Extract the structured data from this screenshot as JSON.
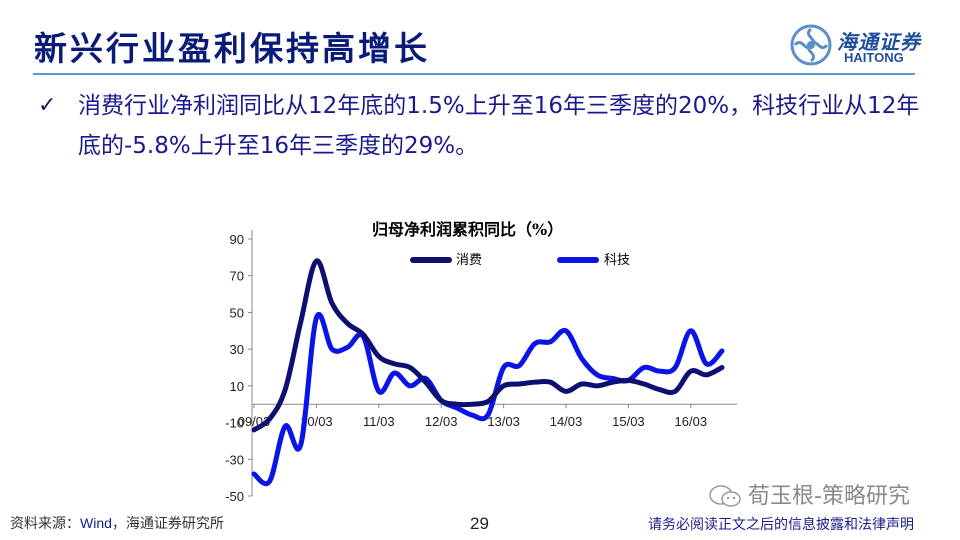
{
  "header": {
    "title": "新兴行业盈利保持高增长",
    "logo": {
      "icon": "haitong-logo-icon",
      "cn": "海通证券",
      "en": "HAITONG"
    }
  },
  "bullet": {
    "icon": "checkmark-icon",
    "text": "消费行业净利润同比从12年底的1.5%上升至16年三季度的20%，科技行业从12年底的-5.8%上升至16年三季度的29%。"
  },
  "chart_data": {
    "type": "line",
    "title": "归母净利润累积同比（%）",
    "xlabel": "",
    "ylabel": "",
    "ylim": [
      -50,
      90
    ],
    "yticks": [
      90,
      70,
      50,
      30,
      10,
      -10,
      -30,
      -50
    ],
    "xtick_labels": [
      "09/03",
      "10/03",
      "11/03",
      "12/03",
      "13/03",
      "14/03",
      "15/03",
      "16/03"
    ],
    "x": [
      "09/03",
      "09/06",
      "09/09",
      "09/12",
      "10/03",
      "10/06",
      "10/09",
      "10/12",
      "11/03",
      "11/06",
      "11/09",
      "11/12",
      "12/03",
      "12/06",
      "12/09",
      "12/12",
      "13/03",
      "13/06",
      "13/09",
      "13/12",
      "14/03",
      "14/06",
      "14/09",
      "14/12",
      "15/03",
      "15/06",
      "15/09",
      "15/12",
      "16/03",
      "16/06",
      "16/09"
    ],
    "series": [
      {
        "name": "消费",
        "color": "#0d1070",
        "values": [
          -14,
          -8,
          8,
          45,
          78,
          55,
          44,
          38,
          26,
          22,
          20,
          12,
          2,
          0,
          0,
          1.5,
          10,
          11,
          12,
          12,
          7,
          11,
          10,
          12,
          13,
          11,
          8,
          7,
          18,
          16,
          20
        ]
      },
      {
        "name": "科技",
        "color": "#0a14e6",
        "values": [
          -38,
          -42,
          -12,
          -22,
          47,
          30,
          31,
          37,
          7,
          17,
          10,
          14,
          2,
          -2,
          -6,
          -5.8,
          20,
          21,
          33,
          34,
          40,
          25,
          16,
          14,
          13,
          20,
          18,
          20,
          40,
          22,
          29
        ]
      }
    ],
    "legend": [
      "消费",
      "科技"
    ],
    "legend_position": "top",
    "grid": false
  },
  "footer": {
    "source_prefix": "资料来源：",
    "source_wind": "Wind",
    "source_suffix": "，海通证券研究所",
    "page_number": "29",
    "disclaimer": "请务必阅读正文之后的信息披露和法律声明",
    "watermark": "荀玉根-策略研究"
  }
}
